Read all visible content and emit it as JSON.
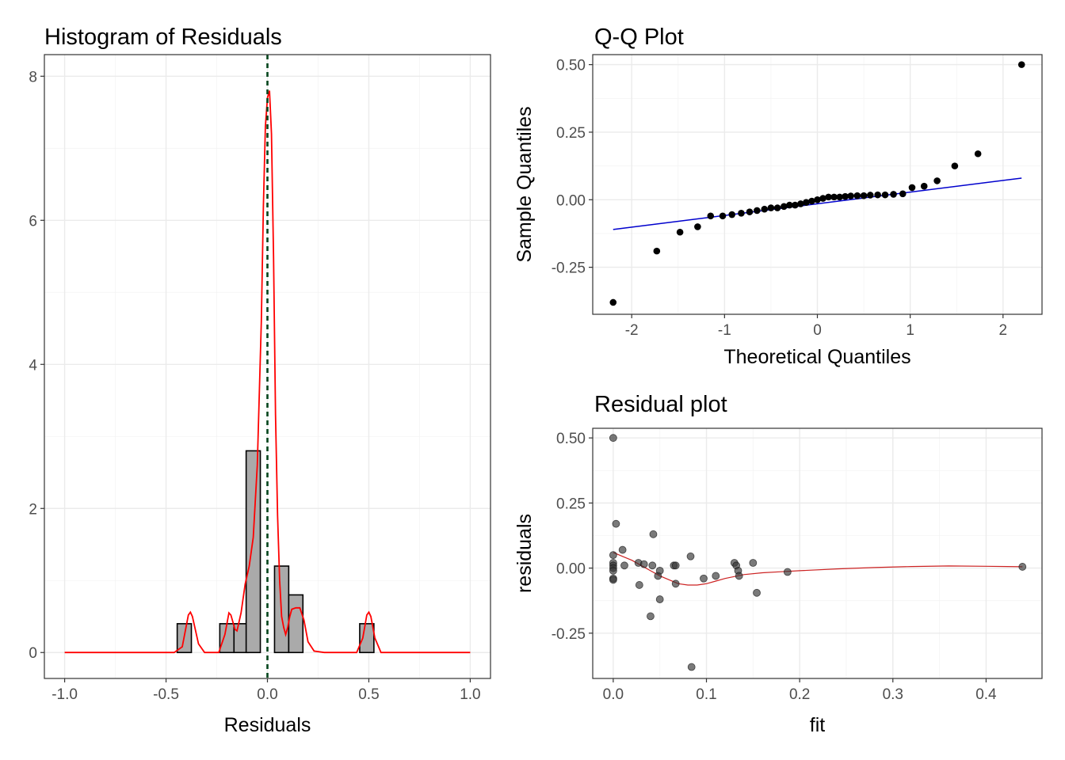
{
  "colors": {
    "bar_fill": "#aaaaaa",
    "bar_edge": "#000000",
    "density": "#ff0000",
    "vline": "#00441b",
    "qq_points": "#000000",
    "qq_line": "#0000cd",
    "resid_points": "#333333",
    "loess": "#cc2222"
  },
  "chart_data": [
    {
      "type": "bar",
      "title": "Histogram of Residuals",
      "xlabel": "Residuals",
      "ylabel": "",
      "xlim": [
        -1.1,
        1.1
      ],
      "ylim": [
        -0.36,
        8.3
      ],
      "xticks": [
        -1.0,
        -0.5,
        0.0,
        0.5,
        1.0
      ],
      "xtick_labels": [
        "-1.0",
        "-0.5",
        "0.0",
        "0.5",
        "1.0"
      ],
      "yticks": [
        0,
        2,
        4,
        6,
        8
      ],
      "ytick_labels": [
        "0",
        "2",
        "4",
        "6",
        "8"
      ],
      "grid": true,
      "bin_width": 0.07,
      "bins": [
        {
          "x": -0.41,
          "value": 0.4
        },
        {
          "x": -0.2,
          "value": 0.4
        },
        {
          "x": -0.13,
          "value": 0.4
        },
        {
          "x": -0.07,
          "value": 2.8
        },
        {
          "x": 0.07,
          "value": 1.2
        },
        {
          "x": 0.14,
          "value": 0.8
        },
        {
          "x": 0.49,
          "value": 0.4
        }
      ],
      "density": [
        [
          -1.0,
          0.0
        ],
        [
          -0.46,
          0.0
        ],
        [
          -0.42,
          0.08
        ],
        [
          -0.39,
          0.52
        ],
        [
          -0.38,
          0.56
        ],
        [
          -0.37,
          0.5
        ],
        [
          -0.34,
          0.12
        ],
        [
          -0.31,
          0.0
        ],
        [
          -0.24,
          0.0
        ],
        [
          -0.21,
          0.25
        ],
        [
          -0.19,
          0.55
        ],
        [
          -0.18,
          0.52
        ],
        [
          -0.16,
          0.32
        ],
        [
          -0.15,
          0.3
        ],
        [
          -0.13,
          0.55
        ],
        [
          -0.11,
          0.95
        ],
        [
          -0.09,
          1.2
        ],
        [
          -0.07,
          1.6
        ],
        [
          -0.05,
          2.6
        ],
        [
          -0.03,
          4.6
        ],
        [
          -0.02,
          6.2
        ],
        [
          -0.01,
          7.3
        ],
        [
          0.0,
          7.7
        ],
        [
          0.01,
          7.8
        ],
        [
          0.02,
          7.2
        ],
        [
          0.03,
          5.5
        ],
        [
          0.04,
          3.3
        ],
        [
          0.05,
          1.9
        ],
        [
          0.06,
          1.0
        ],
        [
          0.07,
          0.5
        ],
        [
          0.08,
          0.35
        ],
        [
          0.09,
          0.25
        ],
        [
          0.1,
          0.35
        ],
        [
          0.11,
          0.5
        ],
        [
          0.12,
          0.6
        ],
        [
          0.14,
          0.62
        ],
        [
          0.16,
          0.62
        ],
        [
          0.18,
          0.45
        ],
        [
          0.2,
          0.15
        ],
        [
          0.23,
          0.02
        ],
        [
          0.28,
          0.0
        ],
        [
          0.44,
          0.0
        ],
        [
          0.47,
          0.2
        ],
        [
          0.49,
          0.52
        ],
        [
          0.5,
          0.56
        ],
        [
          0.51,
          0.5
        ],
        [
          0.53,
          0.2
        ],
        [
          0.56,
          0.0
        ],
        [
          1.0,
          0.0
        ]
      ],
      "vline_x": 0.0
    },
    {
      "type": "scatter",
      "title": "Q-Q Plot",
      "xlabel": "Theoretical Quantiles",
      "ylabel": "Sample Quantiles",
      "xlim": [
        -2.42,
        2.42
      ],
      "ylim": [
        -0.424,
        0.537
      ],
      "xticks": [
        -2,
        -1,
        0,
        1,
        2
      ],
      "xtick_labels": [
        "-2",
        "-1",
        "0",
        "1",
        "2"
      ],
      "yticks": [
        -0.25,
        0.0,
        0.25,
        0.5
      ],
      "ytick_labels": [
        "-0.25",
        "0.00",
        "0.25",
        "0.50"
      ],
      "grid": true,
      "points": [
        [
          -2.2,
          -0.38
        ],
        [
          -1.73,
          -0.19
        ],
        [
          -1.48,
          -0.12
        ],
        [
          -1.29,
          -0.1
        ],
        [
          -1.15,
          -0.06
        ],
        [
          -1.02,
          -0.06
        ],
        [
          -0.92,
          -0.055
        ],
        [
          -0.82,
          -0.05
        ],
        [
          -0.73,
          -0.045
        ],
        [
          -0.65,
          -0.04
        ],
        [
          -0.57,
          -0.035
        ],
        [
          -0.5,
          -0.03
        ],
        [
          -0.43,
          -0.03
        ],
        [
          -0.36,
          -0.025
        ],
        [
          -0.3,
          -0.02
        ],
        [
          -0.24,
          -0.02
        ],
        [
          -0.18,
          -0.015
        ],
        [
          -0.12,
          -0.01
        ],
        [
          -0.06,
          -0.005
        ],
        [
          0.0,
          0.0
        ],
        [
          0.06,
          0.005
        ],
        [
          0.12,
          0.01
        ],
        [
          0.18,
          0.01
        ],
        [
          0.24,
          0.01
        ],
        [
          0.3,
          0.012
        ],
        [
          0.36,
          0.014
        ],
        [
          0.43,
          0.015
        ],
        [
          0.5,
          0.015
        ],
        [
          0.57,
          0.017
        ],
        [
          0.65,
          0.018
        ],
        [
          0.73,
          0.018
        ],
        [
          0.82,
          0.02
        ],
        [
          0.92,
          0.022
        ],
        [
          1.02,
          0.045
        ],
        [
          1.15,
          0.05
        ],
        [
          1.29,
          0.07
        ],
        [
          1.48,
          0.125
        ],
        [
          1.73,
          0.17
        ],
        [
          2.2,
          0.5
        ]
      ],
      "ref_line": [
        [
          -2.2,
          -0.11
        ],
        [
          2.2,
          0.08
        ]
      ]
    },
    {
      "type": "scatter",
      "title": "Residual plot",
      "xlabel": "fit",
      "ylabel": "residuals",
      "xlim": [
        -0.022,
        0.46
      ],
      "ylim": [
        -0.424,
        0.537
      ],
      "xticks": [
        0.0,
        0.1,
        0.2,
        0.3,
        0.4
      ],
      "xtick_labels": [
        "0.0",
        "0.1",
        "0.2",
        "0.3",
        "0.4"
      ],
      "yticks": [
        -0.25,
        0.0,
        0.25,
        0.5
      ],
      "ytick_labels": [
        "-0.25",
        "0.00",
        "0.25",
        "0.50"
      ],
      "grid": true,
      "points": [
        [
          0.0,
          0.5
        ],
        [
          0.0,
          0.05
        ],
        [
          0.0,
          0.02
        ],
        [
          0.0,
          0.01
        ],
        [
          0.0,
          0.0
        ],
        [
          0.0,
          -0.01
        ],
        [
          0.0,
          -0.04
        ],
        [
          0.0,
          -0.045
        ],
        [
          0.003,
          0.17
        ],
        [
          0.01,
          0.07
        ],
        [
          0.012,
          0.01
        ],
        [
          0.027,
          0.02
        ],
        [
          0.028,
          -0.065
        ],
        [
          0.033,
          0.015
        ],
        [
          0.04,
          -0.185
        ],
        [
          0.042,
          0.01
        ],
        [
          0.043,
          0.13
        ],
        [
          0.048,
          -0.03
        ],
        [
          0.05,
          -0.01
        ],
        [
          0.05,
          -0.12
        ],
        [
          0.065,
          0.01
        ],
        [
          0.067,
          0.01
        ],
        [
          0.067,
          -0.06
        ],
        [
          0.083,
          0.045
        ],
        [
          0.084,
          -0.38
        ],
        [
          0.097,
          -0.04
        ],
        [
          0.11,
          -0.03
        ],
        [
          0.13,
          0.02
        ],
        [
          0.132,
          0.01
        ],
        [
          0.134,
          -0.01
        ],
        [
          0.135,
          -0.03
        ],
        [
          0.15,
          0.02
        ],
        [
          0.154,
          -0.095
        ],
        [
          0.187,
          -0.015
        ],
        [
          0.439,
          0.005
        ]
      ],
      "loess": [
        [
          0.0,
          0.06
        ],
        [
          0.01,
          0.045
        ],
        [
          0.02,
          0.03
        ],
        [
          0.03,
          0.01
        ],
        [
          0.04,
          -0.01
        ],
        [
          0.05,
          -0.03
        ],
        [
          0.06,
          -0.045
        ],
        [
          0.07,
          -0.06
        ],
        [
          0.08,
          -0.065
        ],
        [
          0.09,
          -0.065
        ],
        [
          0.1,
          -0.06
        ],
        [
          0.11,
          -0.05
        ],
        [
          0.12,
          -0.04
        ],
        [
          0.14,
          -0.025
        ],
        [
          0.16,
          -0.018
        ],
        [
          0.18,
          -0.014
        ],
        [
          0.2,
          -0.01
        ],
        [
          0.24,
          -0.003
        ],
        [
          0.28,
          0.002
        ],
        [
          0.32,
          0.006
        ],
        [
          0.36,
          0.008
        ],
        [
          0.4,
          0.007
        ],
        [
          0.439,
          0.005
        ]
      ]
    }
  ]
}
